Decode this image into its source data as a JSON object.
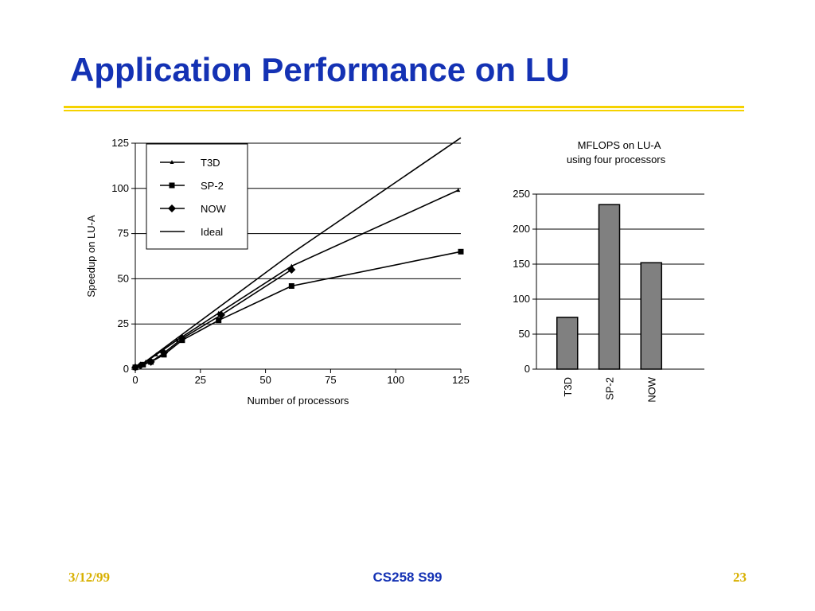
{
  "slide": {
    "title": "Application Performance on LU",
    "footer_date": "3/12/99",
    "footer_course": "CS258 S99",
    "footer_page": "23",
    "colors": {
      "title": "#1432b4",
      "rule": "#f5d200",
      "footer_date": "#d8b000",
      "bar_fill": "#808080"
    }
  },
  "chart_data": [
    {
      "type": "line",
      "title": "",
      "xlabel": "Number of processors",
      "ylabel": "Speedup on LU-A",
      "xlim": [
        0,
        125
      ],
      "ylim": [
        0,
        125
      ],
      "x_ticks": [
        "0",
        "25",
        "50",
        "75",
        "100",
        "125"
      ],
      "y_ticks": [
        "0",
        "25",
        "50",
        "75",
        "100",
        "125"
      ],
      "grid": "horizontal",
      "legend": "top-left",
      "series": [
        {
          "name": "T3D",
          "marker": "small-triangle",
          "x": [
            0,
            2,
            4,
            8,
            16,
            32,
            60,
            124
          ],
          "y": [
            1,
            2,
            4,
            8,
            16,
            31,
            57,
            99
          ]
        },
        {
          "name": "SP-2",
          "marker": "square",
          "x": [
            0,
            3,
            6,
            11,
            18,
            32,
            60,
            125
          ],
          "y": [
            1,
            2.5,
            4,
            8,
            16,
            27,
            46,
            65
          ]
        },
        {
          "name": "NOW",
          "marker": "diamond",
          "x": [
            0,
            2,
            6,
            11,
            18,
            33,
            60
          ],
          "y": [
            1,
            2,
            4,
            9,
            17,
            30,
            55
          ]
        },
        {
          "name": "Ideal",
          "marker": "none",
          "x": [
            0,
            60,
            125
          ],
          "y": [
            0,
            64,
            128
          ]
        }
      ]
    },
    {
      "type": "bar",
      "title": "MFLOPS on LU-A",
      "subtitle": "using four processors",
      "categories": [
        "T3D",
        "SP-2",
        "NOW"
      ],
      "values": [
        74,
        235,
        152
      ],
      "ylim": [
        0,
        250
      ],
      "y_ticks": [
        "0",
        "50",
        "100",
        "150",
        "200",
        "250"
      ],
      "grid": "horizontal"
    }
  ]
}
